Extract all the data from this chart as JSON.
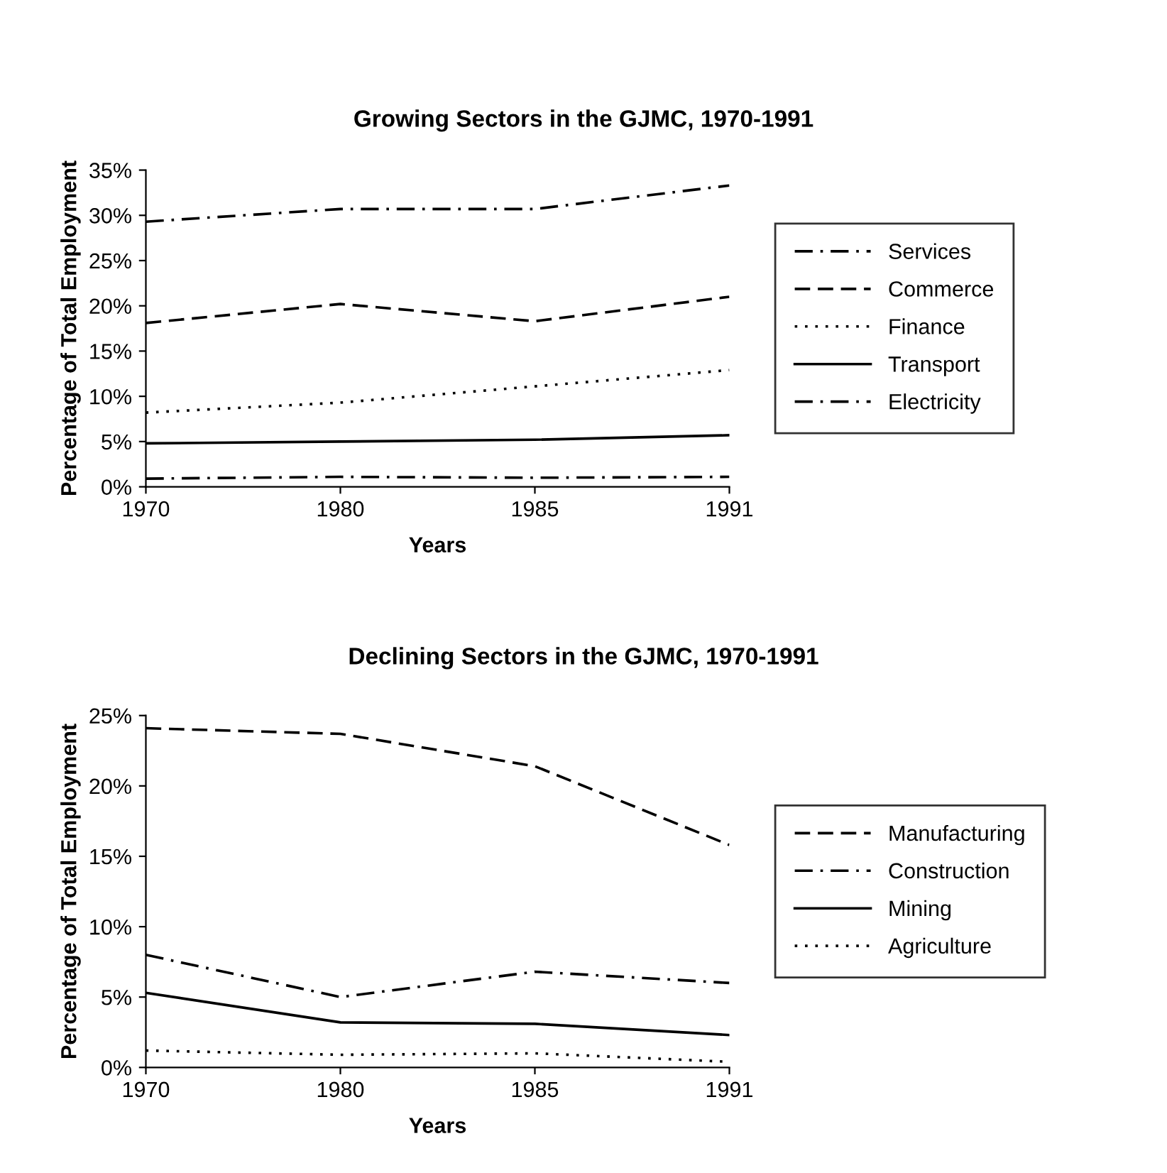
{
  "chart_data": [
    {
      "type": "line",
      "title": "Growing Sectors in the GJMC, 1970-1991",
      "xlabel": "Years",
      "ylabel": "Percentage of Total Employment",
      "categories": [
        "1970",
        "1980",
        "1985",
        "1991"
      ],
      "ylim": [
        0,
        35
      ],
      "yticks": [
        {
          "value": 0,
          "label": "0%"
        },
        {
          "value": 5,
          "label": "5%"
        },
        {
          "value": 10,
          "label": "10%"
        },
        {
          "value": 15,
          "label": "15%"
        },
        {
          "value": 20,
          "label": "20%"
        },
        {
          "value": 25,
          "label": "25%"
        },
        {
          "value": 30,
          "label": "30%"
        },
        {
          "value": 35,
          "label": "35%"
        }
      ],
      "grid": false,
      "legend": "right",
      "marker": "none",
      "series": [
        {
          "name": "Services",
          "color": "#000000",
          "line_style": "dashdot",
          "values": [
            29.3,
            30.7,
            30.7,
            33.3
          ]
        },
        {
          "name": "Commerce",
          "color": "#000000",
          "line_style": "dashed",
          "values": [
            18.1,
            20.2,
            18.3,
            21.0
          ]
        },
        {
          "name": "Finance",
          "color": "#000000",
          "line_style": "dotted",
          "values": [
            8.2,
            9.3,
            11.1,
            12.9
          ]
        },
        {
          "name": "Transport",
          "color": "#000000",
          "line_style": "solid",
          "values": [
            4.8,
            5.0,
            5.2,
            5.7
          ]
        },
        {
          "name": "Electricity",
          "color": "#000000",
          "line_style": "dashdot",
          "values": [
            0.9,
            1.1,
            1.0,
            1.1
          ]
        }
      ]
    },
    {
      "type": "line",
      "title": "Declining Sectors in the GJMC, 1970-1991",
      "xlabel": "Years",
      "ylabel": "Percentage of Total Employment",
      "categories": [
        "1970",
        "1980",
        "1985",
        "1991"
      ],
      "ylim": [
        0,
        25
      ],
      "yticks": [
        {
          "value": 0,
          "label": "0%"
        },
        {
          "value": 5,
          "label": "5%"
        },
        {
          "value": 10,
          "label": "10%"
        },
        {
          "value": 15,
          "label": "15%"
        },
        {
          "value": 20,
          "label": "20%"
        },
        {
          "value": 25,
          "label": "25%"
        }
      ],
      "grid": false,
      "legend": "right",
      "marker": "none",
      "series": [
        {
          "name": "Manufacturing",
          "color": "#000000",
          "line_style": "dashed",
          "values": [
            24.1,
            23.7,
            21.4,
            15.8
          ]
        },
        {
          "name": "Construction",
          "color": "#000000",
          "line_style": "dashdot",
          "values": [
            8.0,
            5.0,
            6.8,
            6.0
          ]
        },
        {
          "name": "Mining",
          "color": "#000000",
          "line_style": "solid",
          "values": [
            5.3,
            3.2,
            3.1,
            2.3
          ]
        },
        {
          "name": "Agriculture",
          "color": "#000000",
          "line_style": "dotted",
          "values": [
            1.2,
            0.9,
            1.0,
            0.4
          ]
        }
      ]
    }
  ]
}
